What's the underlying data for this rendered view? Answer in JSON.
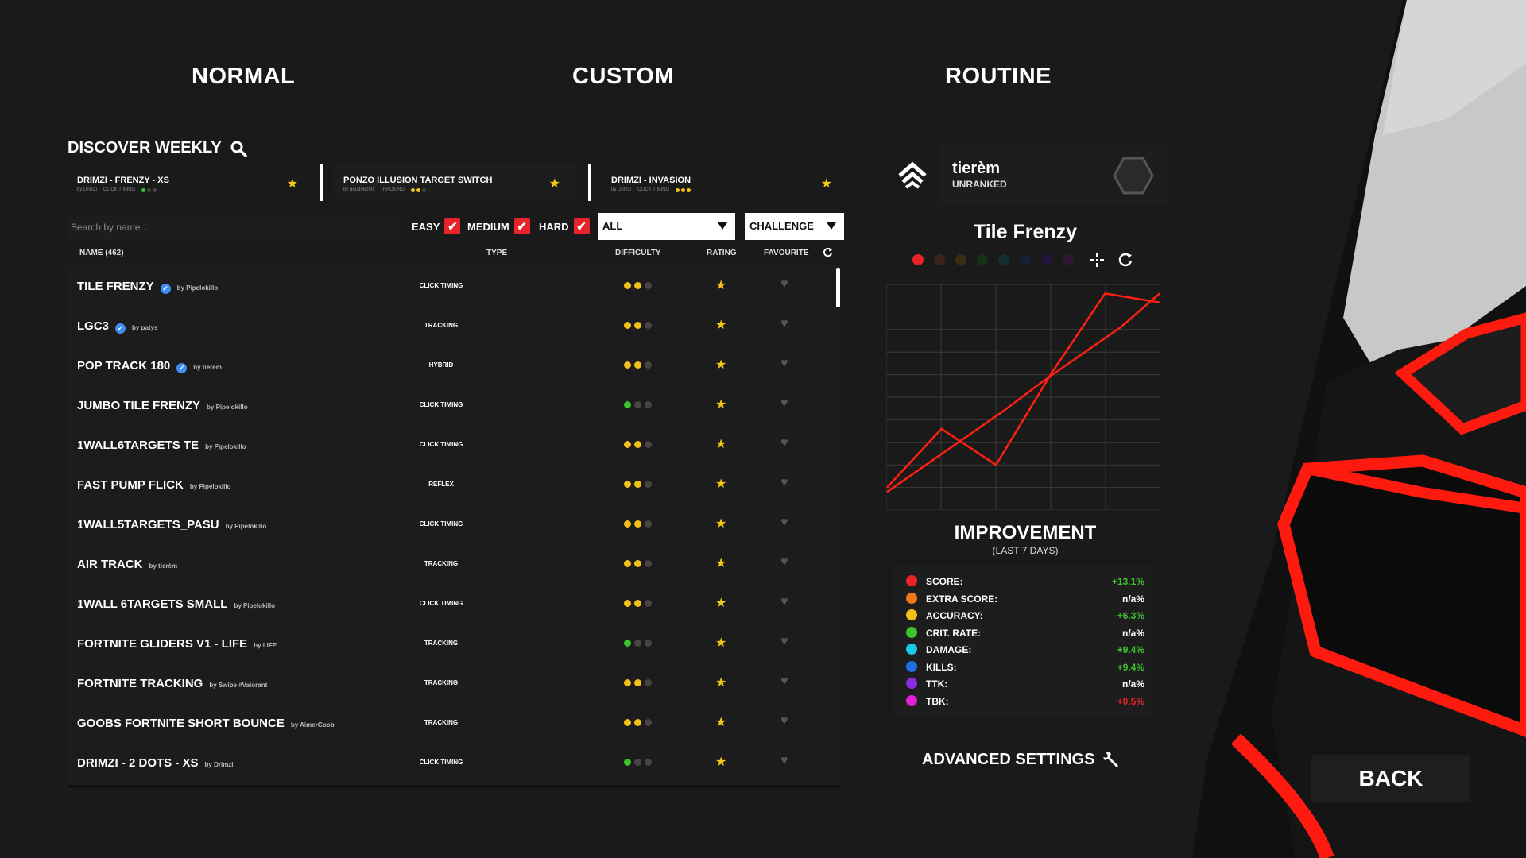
{
  "tabs": {
    "normal": "NORMAL",
    "custom": "CUSTOM",
    "routine": "ROUTINE"
  },
  "discover": {
    "title": "DISCOVER WEEKLY",
    "featured": [
      {
        "title": "DRIMZI - FRENZY - XS",
        "author": "by Drimzi",
        "type": "CLICK TIMING"
      },
      {
        "title": "PONZO ILLUSION TARGET SWITCH",
        "author": "by goudo6290",
        "type": "TRACKING"
      },
      {
        "title": "DRIMZI - INVASION",
        "author": "by Drimzi",
        "type": "CLICK TIMING"
      }
    ]
  },
  "filters": {
    "search_placeholder": "Search by name...",
    "easy": "EASY",
    "medium": "MEDIUM",
    "hard": "HARD",
    "type_select": "ALL",
    "mode_select": "CHALLENGE"
  },
  "table": {
    "headers": {
      "name": "NAME (462)",
      "type": "TYPE",
      "difficulty": "DIFFICULTY",
      "rating": "RATING",
      "favourite": "FAVOURITE"
    },
    "rows": [
      {
        "name": "TILE FRENZY",
        "author": "by Pipelokillo",
        "type": "CLICK TIMING",
        "difficulty": 2,
        "verified": true
      },
      {
        "name": "LGC3",
        "author": "by patys",
        "type": "TRACKING",
        "difficulty": 2,
        "verified": true
      },
      {
        "name": "POP TRACK 180",
        "author": "by tierèm",
        "type": "HYBRID",
        "difficulty": 2,
        "verified": true
      },
      {
        "name": "JUMBO TILE FRENZY",
        "author": "by Pipelokillo",
        "type": "CLICK TIMING",
        "difficulty": 1,
        "verified": false
      },
      {
        "name": "1WALL6TARGETS TE",
        "author": "by Pipelokillo",
        "type": "CLICK TIMING",
        "difficulty": 2,
        "verified": false
      },
      {
        "name": "FAST PUMP FLICK",
        "author": "by Pipelokillo",
        "type": "REFLEX",
        "difficulty": 2,
        "verified": false
      },
      {
        "name": "1WALL5TARGETS_PASU",
        "author": "by Pipelokillo",
        "type": "CLICK TIMING",
        "difficulty": 2,
        "verified": false
      },
      {
        "name": "AIR TRACK",
        "author": "by tierèm",
        "type": "TRACKING",
        "difficulty": 2,
        "verified": false
      },
      {
        "name": "1WALL 6TARGETS SMALL",
        "author": "by Pipelokillo",
        "type": "CLICK TIMING",
        "difficulty": 2,
        "verified": false
      },
      {
        "name": "FORTNITE GLIDERS V1 - LIFE",
        "author": "by LIFE",
        "type": "TRACKING",
        "difficulty": 1,
        "verified": false
      },
      {
        "name": "FORTNITE TRACKING",
        "author": "by Swipe #Valorant",
        "type": "TRACKING",
        "difficulty": 2,
        "verified": false
      },
      {
        "name": "GOOBS FORTNITE SHORT BOUNCE",
        "author": "by AimerGoob",
        "type": "TRACKING",
        "difficulty": 2,
        "verified": false
      },
      {
        "name": "DRIMZI - 2 DOTS - XS",
        "author": "by Drimzi",
        "type": "CLICK TIMING",
        "difficulty": 1,
        "verified": false
      }
    ]
  },
  "profile": {
    "name": "tierèm",
    "rank": "UNRANKED"
  },
  "scenario": {
    "title": "Tile Frenzy",
    "colors": [
      "#e8242a",
      "#3a2418",
      "#3a2e12",
      "#163018",
      "#11302e",
      "#141f3a",
      "#24163a",
      "#301634"
    ]
  },
  "chart_data": {
    "type": "line",
    "series": [
      {
        "values": [
          0.1,
          0.36,
          0.2,
          0.6,
          0.96,
          0.92
        ]
      },
      {
        "values": [
          0.08,
          0.2,
          0.32,
          0.44,
          0.57,
          0.69,
          0.81,
          0.96
        ]
      }
    ],
    "grid": true
  },
  "improvement": {
    "title": "IMPROVEMENT",
    "subtitle": "(LAST 7 DAYS)",
    "stats": [
      {
        "label": "SCORE:",
        "value": "+13.1%",
        "color": "#e8242a",
        "value_color": "#3ec32f"
      },
      {
        "label": "EXTRA SCORE:",
        "value": "n/a%",
        "color": "#f07818",
        "value_color": "#ffffff"
      },
      {
        "label": "ACCURACY:",
        "value": "+6.3%",
        "color": "#f3c019",
        "value_color": "#3ec32f"
      },
      {
        "label": "CRIT. RATE:",
        "value": "n/a%",
        "color": "#3ec32f",
        "value_color": "#ffffff"
      },
      {
        "label": "DAMAGE:",
        "value": "+9.4%",
        "color": "#17c9e6",
        "value_color": "#3ec32f"
      },
      {
        "label": "KILLS:",
        "value": "+9.4%",
        "color": "#1f6ee6",
        "value_color": "#3ec32f"
      },
      {
        "label": "TTK:",
        "value": "n/a%",
        "color": "#8a2be2",
        "value_color": "#ffffff"
      },
      {
        "label": "TBK:",
        "value": "+0.5%",
        "color": "#e020d6",
        "value_color": "#e8242a"
      }
    ]
  },
  "advanced_settings": "ADVANCED SETTINGS",
  "back_label": "BACK"
}
